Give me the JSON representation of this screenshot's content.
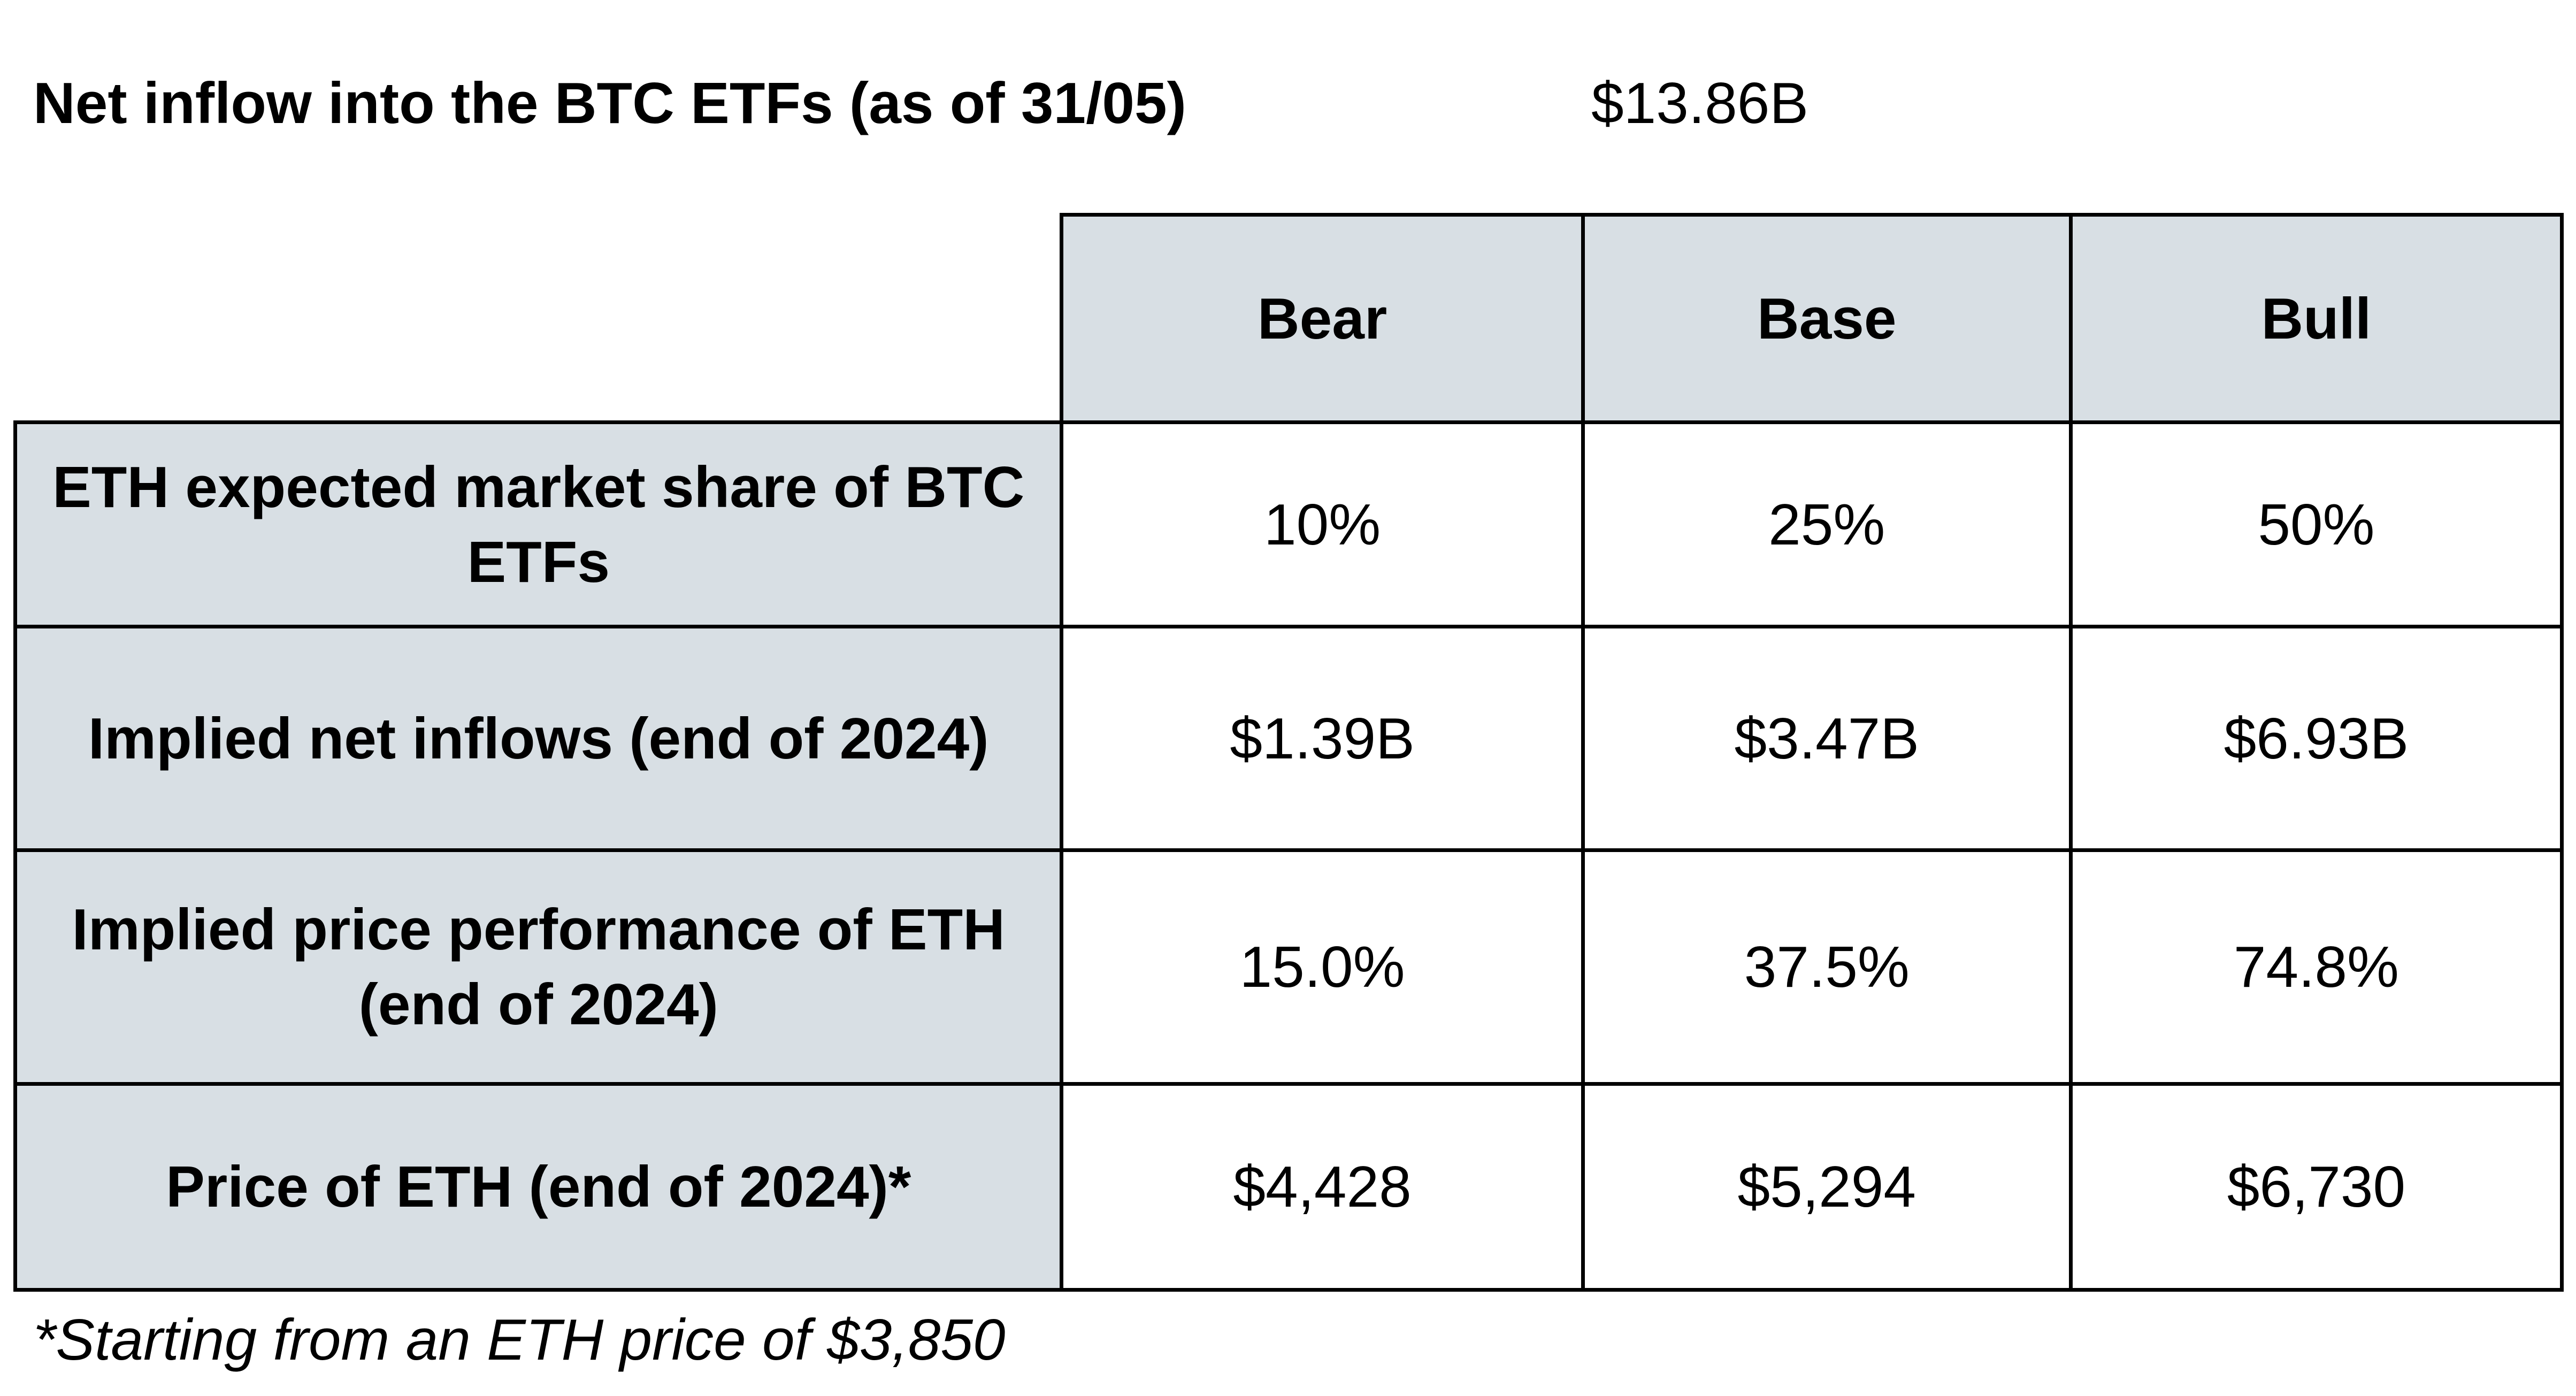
{
  "header": {
    "label": "Net inflow into the BTC ETFs (as of 31/05)",
    "value": "$13.86B"
  },
  "table": {
    "columns": [
      "Bear",
      "Base",
      "Bull"
    ],
    "rows": [
      {
        "label": "ETH expected market share of BTC ETFs",
        "values": [
          "10%",
          "25%",
          "50%"
        ]
      },
      {
        "label": "Implied net inflows (end of 2024)",
        "values": [
          "$1.39B",
          "$3.47B",
          "$6.93B"
        ]
      },
      {
        "label": "Implied price performance of ETH (end of 2024)",
        "values": [
          "15.0%",
          "37.5%",
          "74.8%"
        ]
      },
      {
        "label": "Price of ETH (end of 2024)*",
        "values": [
          "$4,428",
          "$5,294",
          "$6,730"
        ]
      }
    ]
  },
  "footnote": "*Starting from an ETH price of $3,850",
  "colors": {
    "header_fill": "#d8dfe4",
    "border": "#000000"
  }
}
